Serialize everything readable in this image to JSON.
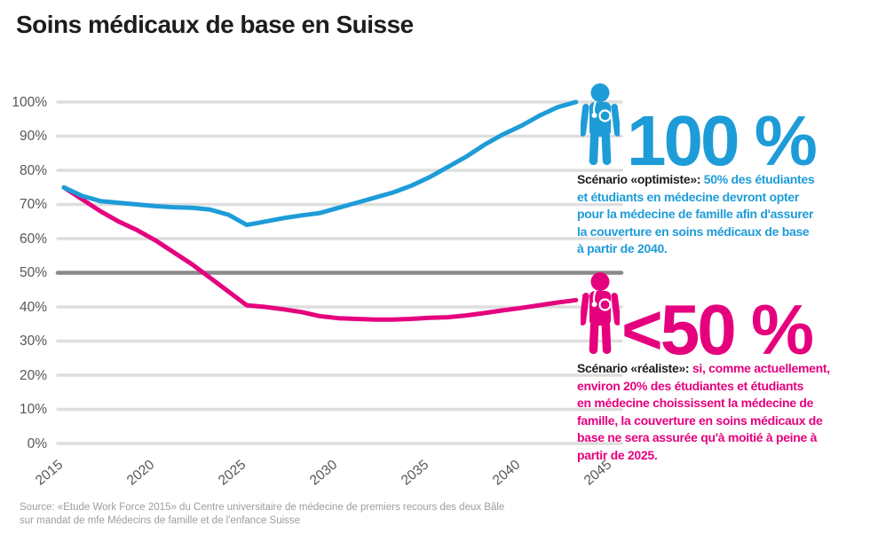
{
  "header": {
    "title": "Soins médicaux de base en Suisse"
  },
  "chart_data": {
    "type": "line",
    "title": "Soins médicaux de base en Suisse",
    "xlabel": "",
    "ylabel": "",
    "xlim": [
      2015,
      2045
    ],
    "ylim": [
      0,
      100
    ],
    "grid": true,
    "legend": "none (annotated directly)",
    "emphasized_gridline_value": 50,
    "colors": {
      "grid_light": "#dedede",
      "grid_emphasis": "#8a8a8a",
      "optimiste": "#1e9cd8",
      "realiste": "#e5007e",
      "axis_text": "#575756"
    },
    "x_ticks": [
      {
        "value": 2015,
        "label": "2015"
      },
      {
        "value": 2020,
        "label": "2020"
      },
      {
        "value": 2025,
        "label": "2025"
      },
      {
        "value": 2030,
        "label": "2030"
      },
      {
        "value": 2035,
        "label": "2035"
      },
      {
        "value": 2040,
        "label": "2040"
      },
      {
        "value": 2045,
        "label": "2045"
      }
    ],
    "y_ticks": [
      {
        "value": 100,
        "label": "100%"
      },
      {
        "value": 90,
        "label": "90%"
      },
      {
        "value": 80,
        "label": "80%"
      },
      {
        "value": 70,
        "label": "70%"
      },
      {
        "value": 60,
        "label": "60%"
      },
      {
        "value": 50,
        "label": "50%"
      },
      {
        "value": 40,
        "label": "40%"
      },
      {
        "value": 30,
        "label": "30%"
      },
      {
        "value": 20,
        "label": "20%"
      },
      {
        "value": 10,
        "label": "10%"
      },
      {
        "value": 0,
        "label": "0%"
      }
    ],
    "series": [
      {
        "id": "scenario-optimiste",
        "name": "Scénario «optimiste»",
        "color": "#1e9cd8",
        "points": [
          [
            2015,
            75
          ],
          [
            2016,
            72.5
          ],
          [
            2017,
            71
          ],
          [
            2018,
            70.5
          ],
          [
            2019,
            70
          ],
          [
            2020,
            69.5
          ],
          [
            2021,
            69.2
          ],
          [
            2022,
            69
          ],
          [
            2023,
            68.5
          ],
          [
            2024,
            67
          ],
          [
            2025,
            64
          ],
          [
            2026,
            65
          ],
          [
            2027,
            66
          ],
          [
            2028,
            66.8
          ],
          [
            2029,
            67.5
          ],
          [
            2030,
            69
          ],
          [
            2031,
            70.5
          ],
          [
            2032,
            72
          ],
          [
            2033,
            73.5
          ],
          [
            2034,
            75.5
          ],
          [
            2035,
            78
          ],
          [
            2036,
            81
          ],
          [
            2037,
            84
          ],
          [
            2038,
            87.5
          ],
          [
            2039,
            90.5
          ],
          [
            2040,
            93
          ],
          [
            2041,
            96
          ],
          [
            2042,
            98.5
          ],
          [
            2043,
            100
          ]
        ]
      },
      {
        "id": "scenario-realiste",
        "name": "Scénario «réaliste»",
        "color": "#e5007e",
        "points": [
          [
            2015,
            75
          ],
          [
            2016,
            71.5
          ],
          [
            2017,
            68
          ],
          [
            2018,
            65
          ],
          [
            2019,
            62.5
          ],
          [
            2020,
            59.5
          ],
          [
            2021,
            56
          ],
          [
            2022,
            52.5
          ],
          [
            2023,
            48.5
          ],
          [
            2024,
            44.5
          ],
          [
            2025,
            40.5
          ],
          [
            2026,
            40
          ],
          [
            2027,
            39.3
          ],
          [
            2028,
            38.5
          ],
          [
            2029,
            37.3
          ],
          [
            2030,
            36.7
          ],
          [
            2031,
            36.5
          ],
          [
            2032,
            36.3
          ],
          [
            2033,
            36.3
          ],
          [
            2034,
            36.5
          ],
          [
            2035,
            36.8
          ],
          [
            2036,
            37
          ],
          [
            2037,
            37.5
          ],
          [
            2038,
            38.2
          ],
          [
            2039,
            39
          ],
          [
            2040,
            39.7
          ],
          [
            2041,
            40.5
          ],
          [
            2042,
            41.3
          ],
          [
            2043,
            42
          ]
        ]
      }
    ]
  },
  "annotations": {
    "optimiste": {
      "big_number": "100 %",
      "label": "Scénario «optimiste»:",
      "text": "50% des étudiantes\net étudiants en médecine devront opter\npour la médecine de famille afin d'assurer\nla couverture en soins médicaux de base\nà partir de 2040.",
      "color": "#1e9cd8",
      "icon": "doctor-figure-icon"
    },
    "realiste": {
      "big_number": "<50 %",
      "label": "Scénario «réaliste»:",
      "text": "si, comme actuellement,\nenviron 20% des étudiantes et étudiants\nen médecine choississent la médecine de\nfamille, la couverture en soins médicaux de\nbase ne sera assurée qu'à moitié à peine à\npartir de 2025.",
      "color": "#e5007e",
      "icon": "doctor-figure-icon"
    }
  },
  "footer": {
    "source": "Source: «Etude Work Force 2015» du Centre universitaire de médecine de premiers recours des deux Bâle\nsur mandat de mfe Médecins de famille et de l'enfance Suisse"
  }
}
